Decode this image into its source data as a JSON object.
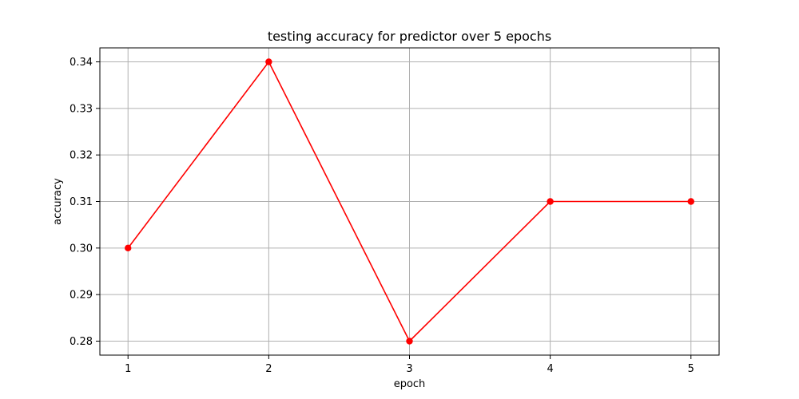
{
  "chart_data": {
    "type": "line",
    "title": "testing accuracy for predictor over 5 epochs",
    "xlabel": "epoch",
    "ylabel": "accuracy",
    "x": [
      1,
      2,
      3,
      4,
      5
    ],
    "series": [
      {
        "values": [
          0.3,
          0.34,
          0.28,
          0.31,
          0.31
        ],
        "color": "#ff0000",
        "marker": "circle"
      }
    ],
    "xticks": [
      1,
      2,
      3,
      4,
      5
    ],
    "xtick_labels": [
      "1",
      "2",
      "3",
      "4",
      "5"
    ],
    "yticks": [
      0.28,
      0.29,
      0.3,
      0.31,
      0.32,
      0.33,
      0.34
    ],
    "ytick_labels": [
      "0.28",
      "0.29",
      "0.30",
      "0.31",
      "0.32",
      "0.33",
      "0.34"
    ],
    "xlim": [
      0.8,
      5.2
    ],
    "ylim": [
      0.277,
      0.343
    ],
    "grid": true,
    "grid_color": "#b0b0b0",
    "axis_color": "#000000"
  }
}
